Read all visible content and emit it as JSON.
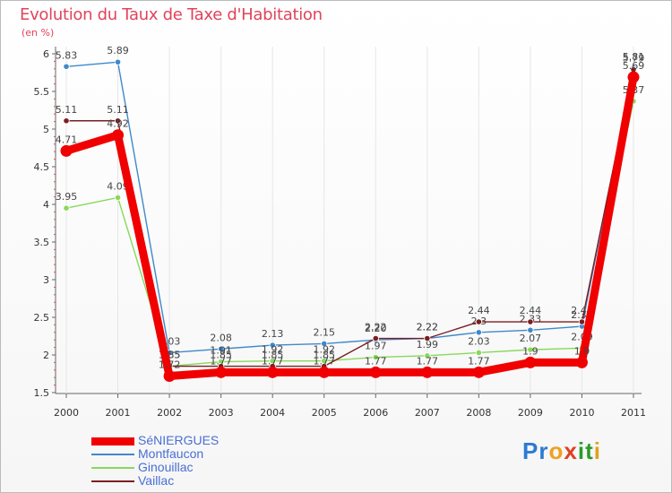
{
  "title": "Evolution du Taux de Taxe d'Habitation",
  "subtitle": "(en %)",
  "logo": {
    "text": "Proxiti",
    "letters": [
      "P",
      "r",
      "o",
      "x",
      "i",
      "t",
      "i"
    ],
    "colors": [
      "#2b7bd4",
      "#2b7bd4",
      "#f0a020",
      "#e04020",
      "#2b9b2b",
      "#2b9b2b",
      "#e0a020"
    ]
  },
  "chart_data": {
    "type": "line",
    "title": "Evolution du Taux de Taxe d'Habitation",
    "ylabel": "(en %)",
    "xlabel": "",
    "ylim": [
      1.5,
      6
    ],
    "yticks": [
      "1.5",
      "2",
      "2.5",
      "3",
      "3.5",
      "4",
      "4.5",
      "5",
      "5.5",
      "6"
    ],
    "x": [
      "2000",
      "2001",
      "2002",
      "2003",
      "2004",
      "2005",
      "2006",
      "2007",
      "2008",
      "2009",
      "2010",
      "2011"
    ],
    "series": [
      {
        "name": "Montfaucon",
        "color": "#3f89c9",
        "values": [
          5.83,
          5.89,
          2.03,
          2.08,
          2.13,
          2.15,
          2.2,
          2.22,
          2.3,
          2.33,
          2.38,
          5.81
        ],
        "labels": [
          "5.83",
          "5.89",
          "2.03",
          "2.08",
          "2.13",
          "2.15",
          "2.20",
          "2.22",
          "2.3",
          "2.33",
          "2.38",
          "5.81"
        ]
      },
      {
        "name": "Ginouillac",
        "color": "#88d85a",
        "values": [
          3.95,
          4.09,
          1.85,
          1.91,
          1.92,
          1.92,
          1.97,
          1.99,
          2.03,
          2.07,
          2.09,
          5.37
        ],
        "labels": [
          "3.95",
          "4.09",
          "1.85",
          "1.91",
          "1.92",
          "1.92",
          "1.97",
          "1.99",
          "2.03",
          "2.07",
          "2.09",
          "5.37"
        ]
      },
      {
        "name": "Vaillac",
        "color": "#7a1e22",
        "values": [
          5.11,
          5.11,
          1.85,
          1.85,
          1.85,
          1.85,
          2.22,
          2.22,
          2.44,
          2.44,
          2.44,
          5.79
        ],
        "labels": [
          "5.11",
          "5.11",
          "1.85",
          "1.85",
          "1.85",
          "1.85",
          "2.22",
          "2.22",
          "2.44",
          "2.44",
          "2.44",
          "5.79"
        ]
      },
      {
        "name": "SéNIERGUES",
        "color": "#f00000",
        "values": [
          4.71,
          4.92,
          1.72,
          1.77,
          1.77,
          1.77,
          1.77,
          1.77,
          1.77,
          1.9,
          1.9,
          5.69
        ],
        "labels": [
          "4.71",
          "4.92",
          "1.72",
          "1.77",
          "1.77",
          "1.77",
          "1.77",
          "1.77",
          "1.77",
          "1.9",
          "1.9",
          "5.69"
        ]
      }
    ],
    "legend": [
      "SéNIERGUES",
      "Montfaucon",
      "Ginouillac",
      "Vaillac"
    ],
    "legend_position": "bottom-left"
  }
}
